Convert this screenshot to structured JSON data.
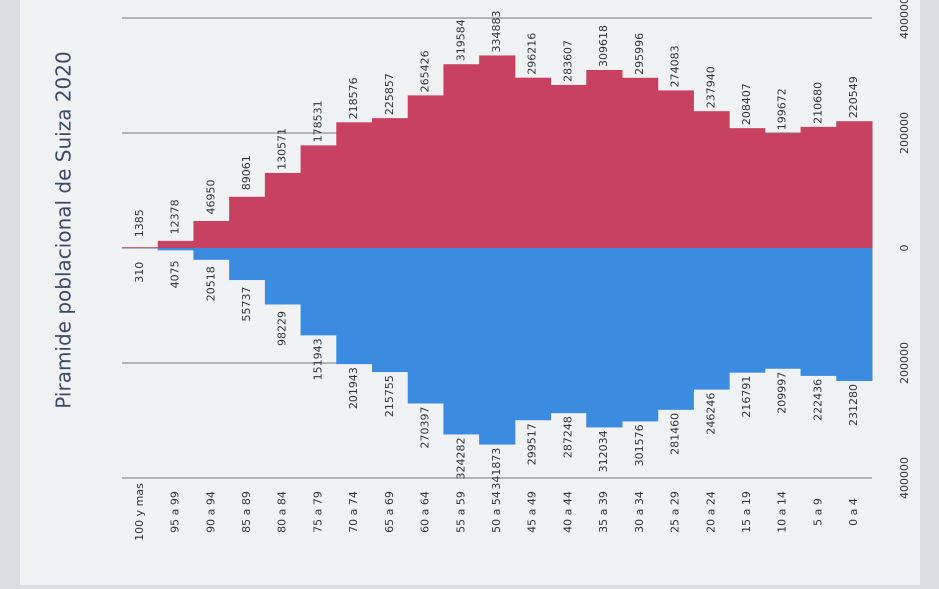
{
  "chart_data": {
    "type": "pyramid",
    "title": "Piramide poblacional de Suiza 2020",
    "categories": [
      "100 y mas",
      "95 a 99",
      "90 a 94",
      "85 a 89",
      "80 a 84",
      "75 a 79",
      "70 a 74",
      "65 a 69",
      "60 a 64",
      "55 a 59",
      "50 a 54",
      "45 a 49",
      "40 a 44",
      "35 a 39",
      "30 a 34",
      "25 a 29",
      "20 a 24",
      "15 a 19",
      "10 a 14",
      "5 a 9",
      "0 a 4"
    ],
    "series": [
      {
        "color": "#c94160",
        "values": [
          1385,
          12378,
          46950,
          89061,
          130571,
          178531,
          218576,
          225857,
          265426,
          319584,
          334883,
          296216,
          283607,
          309618,
          295996,
          274083,
          237940,
          208407,
          199672,
          210680,
          220549
        ]
      },
      {
        "color": "#3b8be0",
        "values": [
          310,
          4075,
          20518,
          55737,
          98229,
          151943,
          201943,
          215755,
          270397,
          324282,
          341873,
          299517,
          287248,
          312034,
          301576,
          281460,
          246246,
          216791,
          209997,
          222436,
          231280
        ]
      }
    ],
    "xlim": [
      -400000,
      400000
    ],
    "xticks": [
      {
        "value": -400000,
        "label": "400000"
      },
      {
        "value": -200000,
        "label": "200000"
      },
      0,
      200000,
      400000
    ],
    "grid": true
  }
}
